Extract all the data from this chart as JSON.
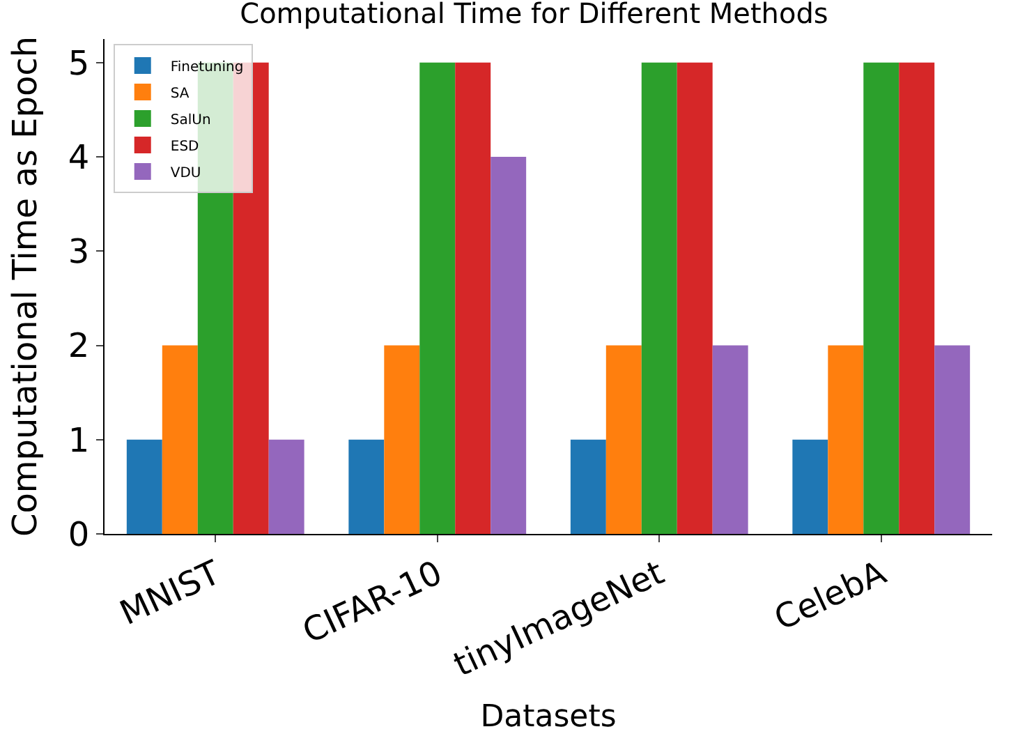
{
  "chart_data": {
    "type": "bar",
    "title": "Computational Time for Different Methods",
    "xlabel": "Datasets",
    "ylabel": "Computational Time as Epoch",
    "categories": [
      "MNIST",
      "CIFAR-10",
      "tinyImageNet",
      "CelebA"
    ],
    "series": [
      {
        "name": "Finetuning",
        "color": "#1f77b4",
        "values": [
          1,
          1,
          1,
          1
        ]
      },
      {
        "name": "SA",
        "color": "#ff7f0e",
        "values": [
          2,
          2,
          2,
          2
        ]
      },
      {
        "name": "SalUn",
        "color": "#2ca02c",
        "values": [
          5,
          5,
          5,
          5
        ]
      },
      {
        "name": "ESD",
        "color": "#d62728",
        "values": [
          5,
          5,
          5,
          5
        ]
      },
      {
        "name": "VDU",
        "color": "#9467bd",
        "values": [
          1,
          4,
          2,
          2
        ]
      }
    ],
    "ylim": [
      0,
      5.25
    ],
    "yticks": [
      0,
      1,
      2,
      3,
      4,
      5
    ],
    "legend": "top left"
  }
}
